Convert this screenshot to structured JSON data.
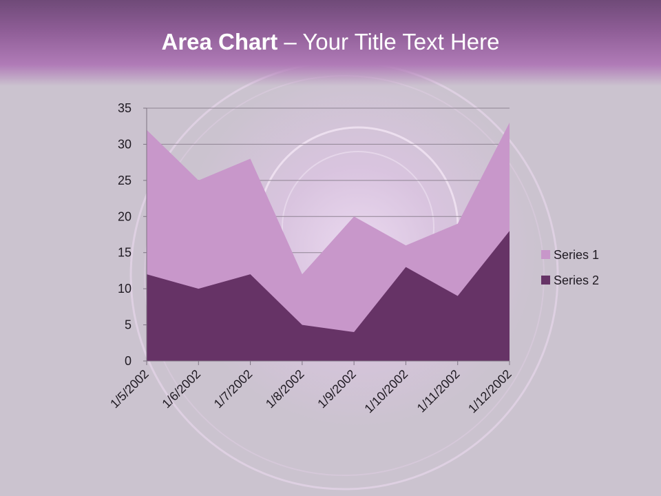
{
  "slide": {
    "title_bold": "Area Chart",
    "title_rest": " – Your Title Text Here"
  },
  "colors": {
    "series1": "#c897ca",
    "series2": "#663366",
    "header": "#9b67a2",
    "background": "#cbc3cf"
  },
  "chart_data": {
    "type": "area",
    "stacked": false,
    "x": [
      "1/5/2002",
      "1/6/2002",
      "1/7/2002",
      "1/8/2002",
      "1/9/2002",
      "1/10/2002",
      "1/11/2002",
      "1/12/2002"
    ],
    "series": [
      {
        "name": "Series 1",
        "values": [
          32,
          25,
          28,
          12,
          20,
          16,
          19,
          33
        ]
      },
      {
        "name": "Series 2",
        "values": [
          12,
          10,
          12,
          5,
          4,
          13,
          9,
          18
        ]
      }
    ],
    "ylim": [
      0,
      35
    ],
    "yticks": [
      "0",
      "5",
      "10",
      "15",
      "20",
      "25",
      "30",
      "35"
    ],
    "grid": true,
    "legend": "right"
  }
}
